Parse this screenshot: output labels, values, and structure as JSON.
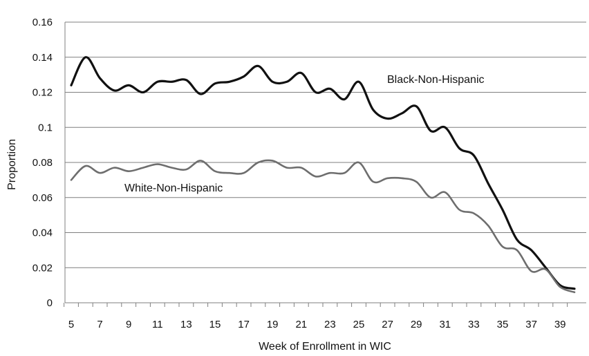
{
  "chart_data": {
    "type": "line",
    "title": "",
    "xlabel": "Week of Enrollment in WIC",
    "ylabel": "Proportion",
    "xlim": [
      5,
      40
    ],
    "ylim": [
      0,
      0.16
    ],
    "grid": true,
    "x_tick_labels": [
      "5",
      "7",
      "9",
      "11",
      "13",
      "15",
      "17",
      "19",
      "21",
      "23",
      "25",
      "27",
      "29",
      "31",
      "33",
      "35",
      "37",
      "39"
    ],
    "y_tick_labels": [
      "0",
      "0.02",
      "0.04",
      "0.06",
      "0.08",
      "0.1",
      "0.12",
      "0.14",
      "0.16"
    ],
    "x": [
      5,
      6,
      7,
      8,
      9,
      10,
      11,
      12,
      13,
      14,
      15,
      16,
      17,
      18,
      19,
      20,
      21,
      22,
      23,
      24,
      25,
      26,
      27,
      28,
      29,
      30,
      31,
      32,
      33,
      34,
      35,
      36,
      37,
      38,
      39,
      40
    ],
    "series": [
      {
        "name": "Black-Non-Hispanic",
        "color": "#111111",
        "values": [
          0.124,
          0.14,
          0.128,
          0.121,
          0.124,
          0.12,
          0.126,
          0.126,
          0.127,
          0.119,
          0.125,
          0.126,
          0.129,
          0.135,
          0.126,
          0.126,
          0.131,
          0.12,
          0.122,
          0.116,
          0.126,
          0.11,
          0.105,
          0.108,
          0.112,
          0.098,
          0.1,
          0.088,
          0.084,
          0.068,
          0.053,
          0.036,
          0.03,
          0.02,
          0.01,
          0.008
        ]
      },
      {
        "name": "White-Non-Hispanic",
        "color": "#6e6e6e",
        "values": [
          0.07,
          0.078,
          0.074,
          0.077,
          0.075,
          0.077,
          0.079,
          0.077,
          0.076,
          0.081,
          0.075,
          0.074,
          0.074,
          0.08,
          0.081,
          0.077,
          0.077,
          0.072,
          0.074,
          0.074,
          0.08,
          0.069,
          0.071,
          0.071,
          0.069,
          0.06,
          0.063,
          0.053,
          0.051,
          0.044,
          0.032,
          0.03,
          0.018,
          0.019,
          0.009,
          0.006
        ]
      }
    ]
  }
}
